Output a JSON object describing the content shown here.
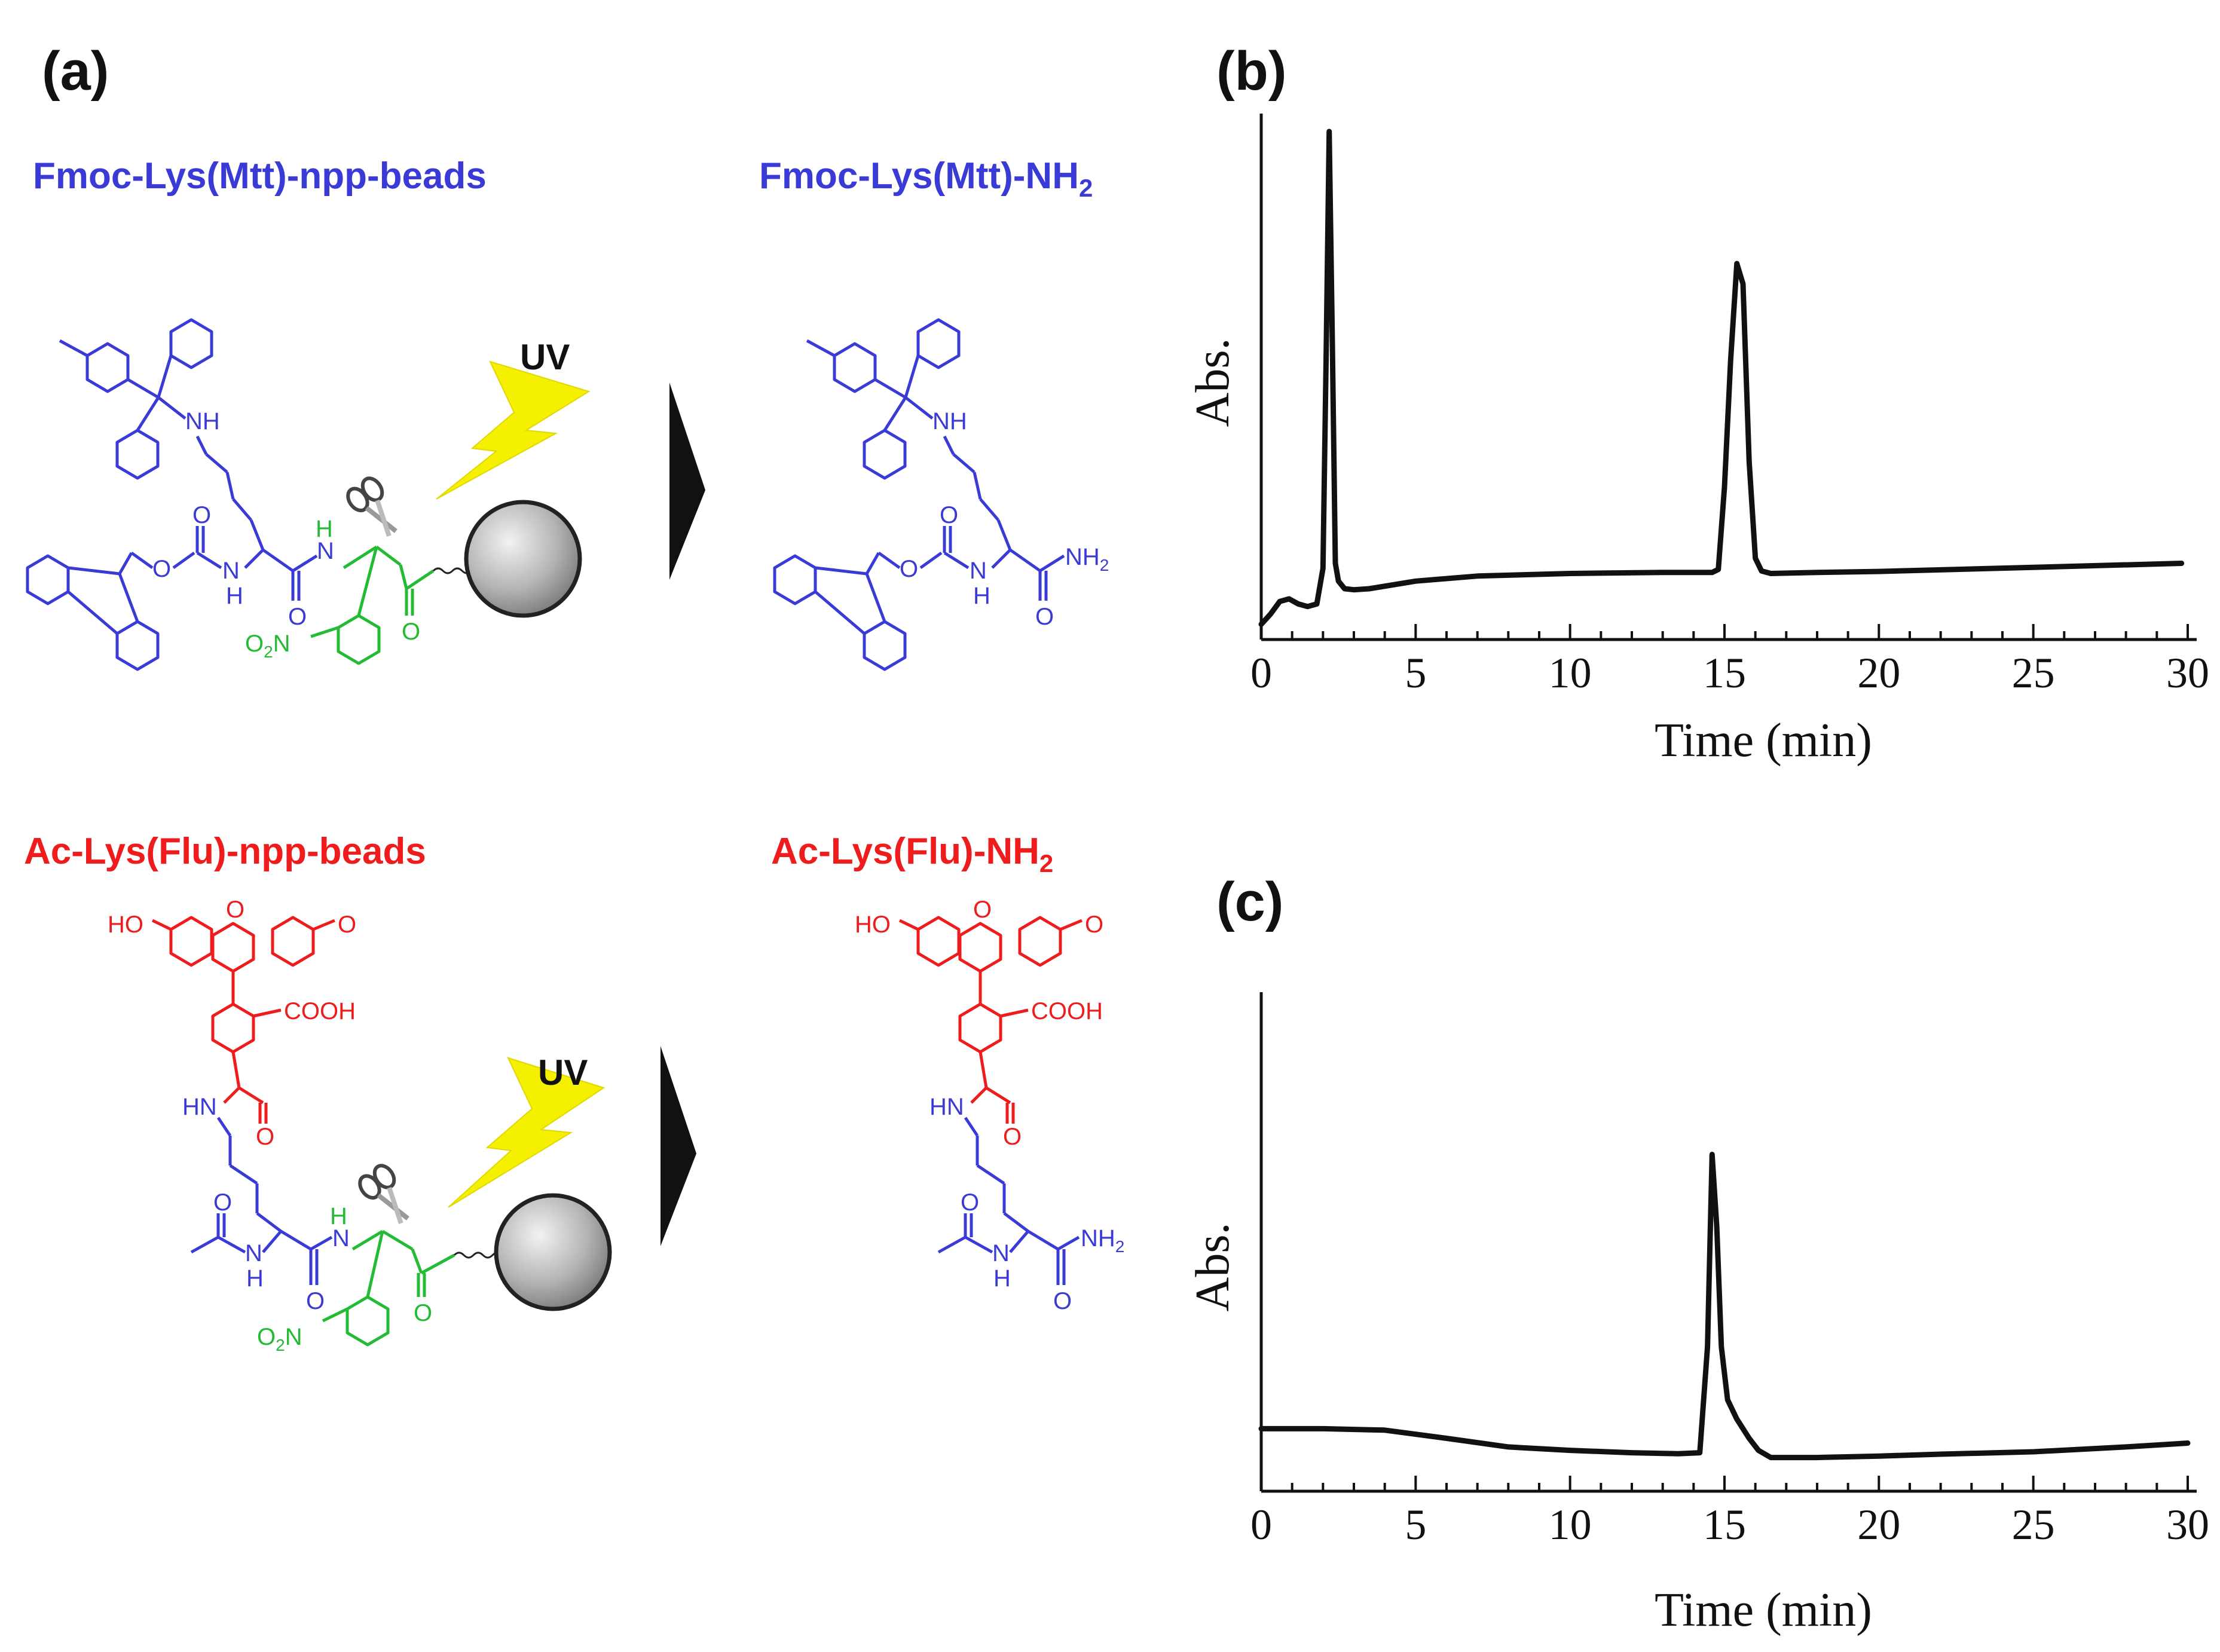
{
  "panels": {
    "a": "(a)",
    "b": "(b)",
    "c": "(c)"
  },
  "scheme": {
    "top_left": "Fmoc-Lys(Mtt)-npp-beads",
    "top_right": "Fmoc-Lys(Mtt)-NH",
    "top_right_sub": "2",
    "bottom_left": "Ac-Lys(Flu)-npp-beads",
    "bottom_right": "Ac-Lys(Flu)-NH",
    "bottom_right_sub": "2",
    "uv": "UV",
    "atoms": {
      "nh": "NH",
      "n": "N",
      "h": "H",
      "o": "O",
      "ho": "HO",
      "cooh": "COOH",
      "hn": "HN",
      "nh2": "NH",
      "two": "2",
      "o2n_o": "O",
      "o2n_n": "N"
    },
    "colors": {
      "blue": "#3a3ad6",
      "red": "#ee1c1c",
      "green": "#22bb33",
      "uv_bolt": "#f5f000"
    }
  },
  "chart_data": [
    {
      "panel": "(b)",
      "type": "line",
      "xlabel": "Time (min)",
      "ylabel": "Abs.",
      "xlim": [
        0,
        30
      ],
      "xticks": [
        0,
        5,
        10,
        15,
        20,
        25,
        30
      ],
      "ylim": [
        0,
        1
      ],
      "series": [
        {
          "x": [
            0,
            0.3,
            0.6,
            0.9,
            1.2,
            1.5,
            1.8,
            2.0,
            2.1,
            2.2,
            2.3,
            2.4,
            2.5,
            2.7,
            3.0,
            3.5,
            5,
            7,
            10,
            13,
            14.6,
            14.8,
            15.0,
            15.2,
            15.4,
            15.6,
            15.8,
            16.0,
            16.2,
            16.5,
            18,
            20,
            25,
            29.8
          ],
          "y": [
            0.03,
            0.05,
            0.075,
            0.08,
            0.07,
            0.065,
            0.07,
            0.14,
            0.55,
            1.0,
            0.6,
            0.15,
            0.115,
            0.1,
            0.098,
            0.1,
            0.115,
            0.125,
            0.13,
            0.132,
            0.132,
            0.138,
            0.3,
            0.55,
            0.74,
            0.7,
            0.35,
            0.16,
            0.135,
            0.13,
            0.132,
            0.134,
            0.142,
            0.15
          ]
        }
      ]
    },
    {
      "panel": "(c)",
      "type": "line",
      "xlabel": "Time (min)",
      "ylabel": "Abs.",
      "xlim": [
        0,
        30
      ],
      "xticks": [
        0,
        5,
        10,
        15,
        20,
        25,
        30
      ],
      "ylim": [
        0,
        1
      ],
      "series": [
        {
          "x": [
            0,
            2,
            4,
            6,
            8,
            10,
            12,
            13.5,
            14.2,
            14.45,
            14.6,
            14.75,
            14.9,
            15.1,
            15.4,
            15.8,
            16.1,
            16.5,
            18,
            20,
            22,
            25,
            28,
            30
          ],
          "y": [
            0.13,
            0.13,
            0.127,
            0.11,
            0.092,
            0.085,
            0.08,
            0.078,
            0.08,
            0.3,
            0.7,
            0.55,
            0.3,
            0.19,
            0.15,
            0.11,
            0.085,
            0.07,
            0.07,
            0.073,
            0.077,
            0.082,
            0.092,
            0.1
          ]
        }
      ]
    }
  ]
}
